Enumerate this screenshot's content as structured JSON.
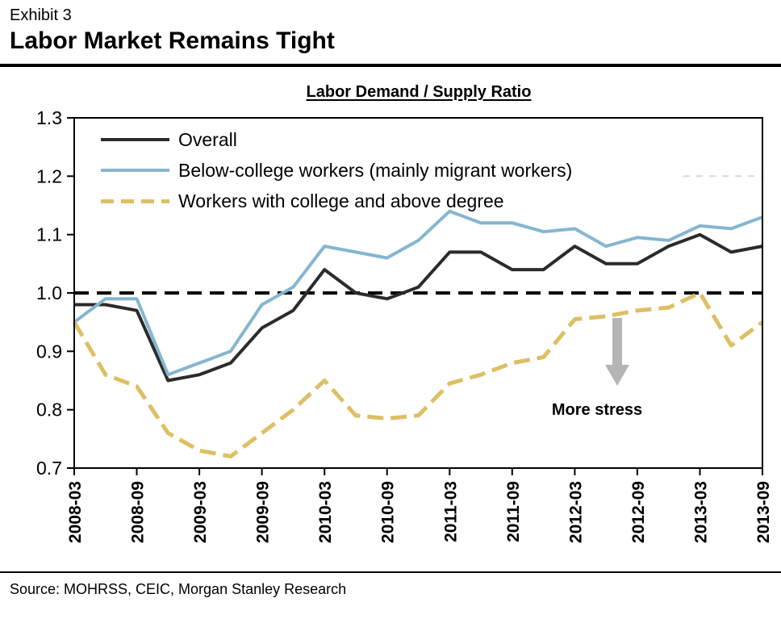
{
  "exhibit": {
    "label": "Exhibit 3",
    "title": "Labor Market Remains Tight"
  },
  "source_line": "Source: MOHRSS, CEIC, Morgan Stanley Research",
  "chart_data": {
    "type": "line",
    "title": "Labor Demand / Supply Ratio",
    "x": [
      "2008-03",
      "2008-06",
      "2008-09",
      "2008-12",
      "2009-03",
      "2009-06",
      "2009-09",
      "2009-12",
      "2010-03",
      "2010-06",
      "2010-09",
      "2010-12",
      "2011-03",
      "2011-06",
      "2011-09",
      "2011-12",
      "2012-03",
      "2012-06",
      "2012-09",
      "2012-12",
      "2013-03",
      "2013-06",
      "2013-09"
    ],
    "x_tick_step": 2,
    "x_tick_labels": [
      "2008-03",
      "2008-09",
      "2009-03",
      "2009-09",
      "2010-03",
      "2010-09",
      "2011-03",
      "2011-09",
      "2012-03",
      "2012-09",
      "2013-03",
      "2013-09"
    ],
    "ylim": [
      0.7,
      1.3
    ],
    "yticks": [
      0.7,
      0.8,
      0.9,
      1.0,
      1.1,
      1.2,
      1.3
    ],
    "grid": false,
    "legend_position": "top-left",
    "reference_line": {
      "y": 1.0,
      "style": "dashed",
      "color": "#000000"
    },
    "faint_gridline": {
      "y": 1.2,
      "color": "#ccdbe3"
    },
    "annotation": {
      "text": "More stress",
      "arrow": "down",
      "arrow_color": "#b5b5b5"
    },
    "series": [
      {
        "name": "Overall",
        "color": "#2b2b2b",
        "style": "solid",
        "values": [
          0.98,
          0.98,
          0.97,
          0.85,
          0.86,
          0.88,
          0.94,
          0.97,
          1.04,
          1.0,
          0.99,
          1.01,
          1.07,
          1.07,
          1.04,
          1.04,
          1.08,
          1.05,
          1.05,
          1.08,
          1.1,
          1.07,
          1.08
        ]
      },
      {
        "name": "Below-college workers (mainly migrant workers)",
        "color": "#85b6d0",
        "style": "solid",
        "values": [
          0.95,
          0.99,
          0.99,
          0.86,
          0.88,
          0.9,
          0.98,
          1.01,
          1.08,
          1.07,
          1.06,
          1.09,
          1.14,
          1.12,
          1.12,
          1.105,
          1.11,
          1.08,
          1.095,
          1.09,
          1.115,
          1.11,
          1.13
        ]
      },
      {
        "name": "Workers with college and above degree",
        "color": "#ddbf64",
        "style": "dashed",
        "values": [
          0.95,
          0.86,
          0.84,
          0.76,
          0.73,
          0.72,
          0.76,
          0.8,
          0.85,
          0.79,
          0.785,
          0.79,
          0.845,
          0.86,
          0.88,
          0.89,
          0.955,
          0.96,
          0.97,
          0.975,
          1.0,
          0.91,
          0.95
        ]
      }
    ]
  }
}
